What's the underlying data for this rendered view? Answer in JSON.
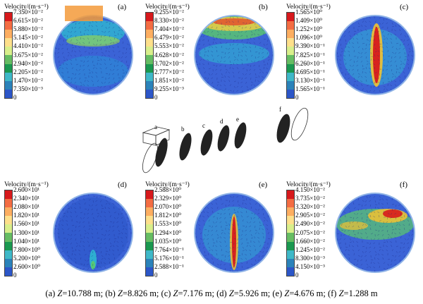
{
  "panels": [
    {
      "letter": "(a)",
      "legend_title": "Velocity/(m·s⁻¹)",
      "ticks": [
        "7.350×10⁻²",
        "6.615×10⁻²",
        "5.880×10⁻²",
        "5.145×10⁻²",
        "4.410×10⁻²",
        "3.675×10⁻²",
        "2.940×10⁻²",
        "2.205×10⁻²",
        "1.470×10⁻²",
        "7.350×10⁻³",
        "0"
      ]
    },
    {
      "letter": "(b)",
      "legend_title": "Velocity/(m·s⁻¹)",
      "ticks": [
        "9.255×10⁻²",
        "8.330×10⁻²",
        "7.404×10⁻²",
        "6.479×10⁻²",
        "5.553×10⁻²",
        "4.628×10⁻²",
        "3.702×10⁻²",
        "2.777×10⁻²",
        "1.851×10⁻²",
        "9.255×10⁻³",
        "0"
      ]
    },
    {
      "letter": "(c)",
      "legend_title": "Velocity/(m·s⁻¹)",
      "ticks": [
        "1.565×10⁰",
        "1.409×10⁰",
        "1.252×10⁰",
        "1.096×10⁰",
        "9.390×10⁻¹",
        "7.825×10⁻¹",
        "6.260×10⁻¹",
        "4.695×10⁻¹",
        "3.130×10⁻¹",
        "1.565×10⁻¹",
        "0"
      ]
    },
    {
      "letter": "(d)",
      "legend_title": "Velocity/(m·s⁻¹)",
      "ticks": [
        "2.600×10¹",
        "2.340×10¹",
        "2.080×10¹",
        "1.820×10¹",
        "1.560×10¹",
        "1.300×10¹",
        "1.040×10¹",
        "7.800×10⁰",
        "5.200×10⁰",
        "2.600×10⁰",
        "0"
      ]
    },
    {
      "letter": "(e)",
      "legend_title": "Velocity/(m·s⁻¹)",
      "ticks": [
        "2.588×10⁰",
        "2.329×10⁰",
        "2.070×10⁰",
        "1.812×10⁰",
        "1.553×10⁰",
        "1.294×10⁰",
        "1.035×10⁰",
        "7.764×10⁻¹",
        "5.176×10⁻¹",
        "2.588×10⁻¹",
        "0"
      ]
    },
    {
      "letter": "(f)",
      "legend_title": "Velocity/(m·s⁻¹)",
      "ticks": [
        "4.150×10⁻²",
        "3.735×10⁻²",
        "3.320×10⁻²",
        "2.905×10⁻²",
        "2.490×10⁻²",
        "2.075×10⁻²",
        "1.660×10⁻²",
        "1.245×10⁻²",
        "8.300×10⁻³",
        "4.150×10⁻³",
        "0"
      ]
    }
  ],
  "colorbar_colors": [
    "#d7191c",
    "#f46d43",
    "#fdae61",
    "#fee08b",
    "#d9ef8b",
    "#66bd63",
    "#1a9850",
    "#3fb8c8",
    "#2b83ba",
    "#2c56c8",
    "#1b2fa8"
  ],
  "schematic_labels": [
    "a",
    "b",
    "c",
    "d",
    "e",
    "f"
  ],
  "caption": [
    {
      "label": "(a) ",
      "var": "Z",
      "value": "=10.788 m; "
    },
    {
      "label": "(b) ",
      "var": "Z",
      "value": "=8.826 m; "
    },
    {
      "label": "(c) ",
      "var": "Z",
      "value": "=7.176 m; "
    },
    {
      "label": "(d) ",
      "var": "Z",
      "value": "=5.926 m; "
    },
    {
      "label": "(e) ",
      "var": "Z",
      "value": "=4.676 m; "
    },
    {
      "label": "(f) ",
      "var": "Z",
      "value": "=1.288 m"
    }
  ]
}
